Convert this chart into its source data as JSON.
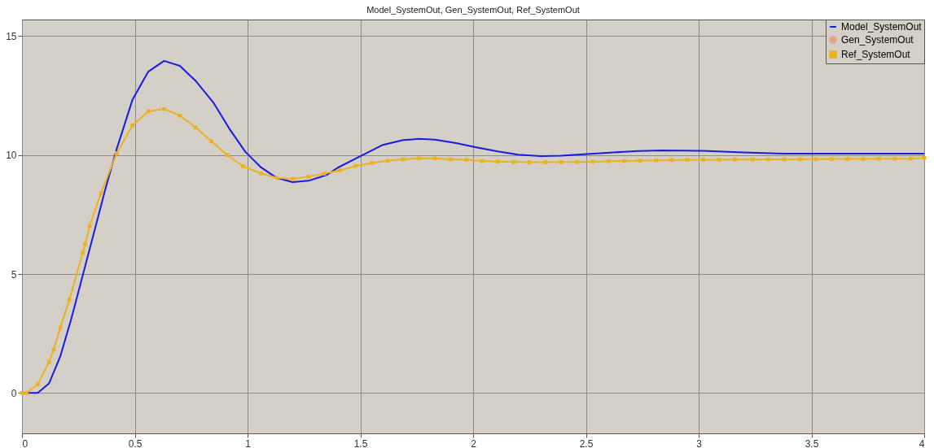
{
  "chart_data": {
    "type": "line",
    "title": "Model_SystemOut, Gen_SystemOut, Ref_SystemOut",
    "xlim": [
      0,
      4
    ],
    "xticks": [
      0,
      0.5,
      1,
      1.5,
      2,
      2.5,
      3,
      3.5,
      4
    ],
    "ylim": [
      -1.7,
      15.7
    ],
    "yticks": [
      0,
      5,
      10,
      15
    ],
    "grid": true,
    "legend": "top right",
    "line_style": "solid",
    "series": [
      {
        "name": "Model_SystemOut",
        "color": "#1a1ae0",
        "marker": "none",
        "x": [
          0,
          0.07,
          0.12,
          0.17,
          0.22,
          0.27,
          0.32,
          0.37,
          0.42,
          0.49,
          0.56,
          0.63,
          0.7,
          0.77,
          0.85,
          0.92,
          0.99,
          1.06,
          1.13,
          1.2,
          1.27,
          1.35,
          1.4,
          1.5,
          1.6,
          1.69,
          1.76,
          1.83,
          1.92,
          2.01,
          2.11,
          2.2,
          2.3,
          2.39,
          2.49,
          2.62,
          2.73,
          2.84,
          3.02,
          3.2,
          3.38,
          3.62,
          4
        ],
        "values": [
          0,
          0,
          0.4,
          1.54,
          3.16,
          4.97,
          6.77,
          8.58,
          10.26,
          12.33,
          13.51,
          13.96,
          13.75,
          13.12,
          12.19,
          11.1,
          10.14,
          9.48,
          9.04,
          8.86,
          8.92,
          9.16,
          9.47,
          9.95,
          10.43,
          10.63,
          10.68,
          10.65,
          10.51,
          10.33,
          10.15,
          10.02,
          9.96,
          9.97,
          10.03,
          10.11,
          10.17,
          10.2,
          10.18,
          10.11,
          10.06,
          10.06,
          10.06
        ]
      },
      {
        "name": "Gen_SystemOut",
        "color": "#e8a08c",
        "marker": "circle"
      },
      {
        "name": "Ref_SystemOut",
        "color": "#edb120",
        "marker": "square",
        "x": [
          0,
          0.02,
          0.07,
          0.12,
          0.14,
          0.17,
          0.21,
          0.27,
          0.28,
          0.3,
          0.35,
          0.42,
          0.49,
          0.56,
          0.63,
          0.7,
          0.77,
          0.84,
          0.91,
          0.98,
          1.06,
          1.13,
          1.2,
          1.27,
          1.34,
          1.41,
          1.48,
          1.55,
          1.62,
          1.69,
          1.76,
          1.83,
          1.9,
          1.97,
          2.04,
          2.11,
          2.18,
          2.25,
          2.32,
          2.39,
          2.46,
          2.53,
          2.6,
          2.67,
          2.74,
          2.81,
          2.88,
          2.95,
          3.02,
          3.09,
          3.16,
          3.24,
          3.31,
          3.38,
          3.45,
          3.52,
          3.59,
          3.66,
          3.73,
          3.8,
          3.87,
          3.94,
          4
        ],
        "values": [
          0,
          0,
          0.36,
          1.3,
          1.82,
          2.74,
          3.92,
          5.9,
          6.25,
          7.02,
          8.39,
          10.08,
          11.25,
          11.84,
          11.94,
          11.66,
          11.16,
          10.58,
          10.0,
          9.53,
          9.23,
          9.04,
          9.0,
          9.09,
          9.22,
          9.36,
          9.54,
          9.67,
          9.76,
          9.82,
          9.86,
          9.86,
          9.82,
          9.8,
          9.75,
          9.73,
          9.71,
          9.7,
          9.7,
          9.71,
          9.71,
          9.72,
          9.74,
          9.75,
          9.77,
          9.78,
          9.79,
          9.8,
          9.8,
          9.8,
          9.81,
          9.81,
          9.82,
          9.82,
          9.83,
          9.83,
          9.84,
          9.84,
          9.84,
          9.85,
          9.85,
          9.85,
          9.88
        ]
      }
    ]
  }
}
